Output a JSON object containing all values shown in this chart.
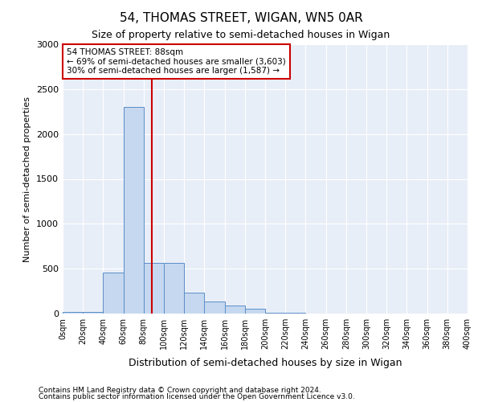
{
  "title": "54, THOMAS STREET, WIGAN, WN5 0AR",
  "subtitle": "Size of property relative to semi-detached houses in Wigan",
  "xlabel": "Distribution of semi-detached houses by size in Wigan",
  "ylabel": "Number of semi-detached properties",
  "footnote1": "Contains HM Land Registry data © Crown copyright and database right 2024.",
  "footnote2": "Contains public sector information licensed under the Open Government Licence v3.0.",
  "bin_edges": [
    0,
    20,
    40,
    60,
    80,
    100,
    120,
    140,
    160,
    180,
    200,
    220,
    240,
    260,
    280,
    300,
    320,
    340,
    360,
    380,
    400
  ],
  "bin_counts": [
    20,
    20,
    460,
    2300,
    560,
    560,
    230,
    130,
    90,
    50,
    10,
    5,
    3,
    0,
    0,
    0,
    0,
    0,
    0,
    0
  ],
  "bar_color": "#c5d8ef",
  "bar_edge_color": "#5b8dc8",
  "property_size": 88,
  "property_label": "54 THOMAS STREET: 88sqm",
  "pct_smaller": 69,
  "n_smaller": 3603,
  "pct_larger": 30,
  "n_larger": 1587,
  "vline_color": "#cc0000",
  "annotation_box_color": "#cc0000",
  "background_color": "#e8eef7",
  "ylim": [
    0,
    3000
  ],
  "yticks": [
    0,
    500,
    1000,
    1500,
    2000,
    2500,
    3000
  ]
}
